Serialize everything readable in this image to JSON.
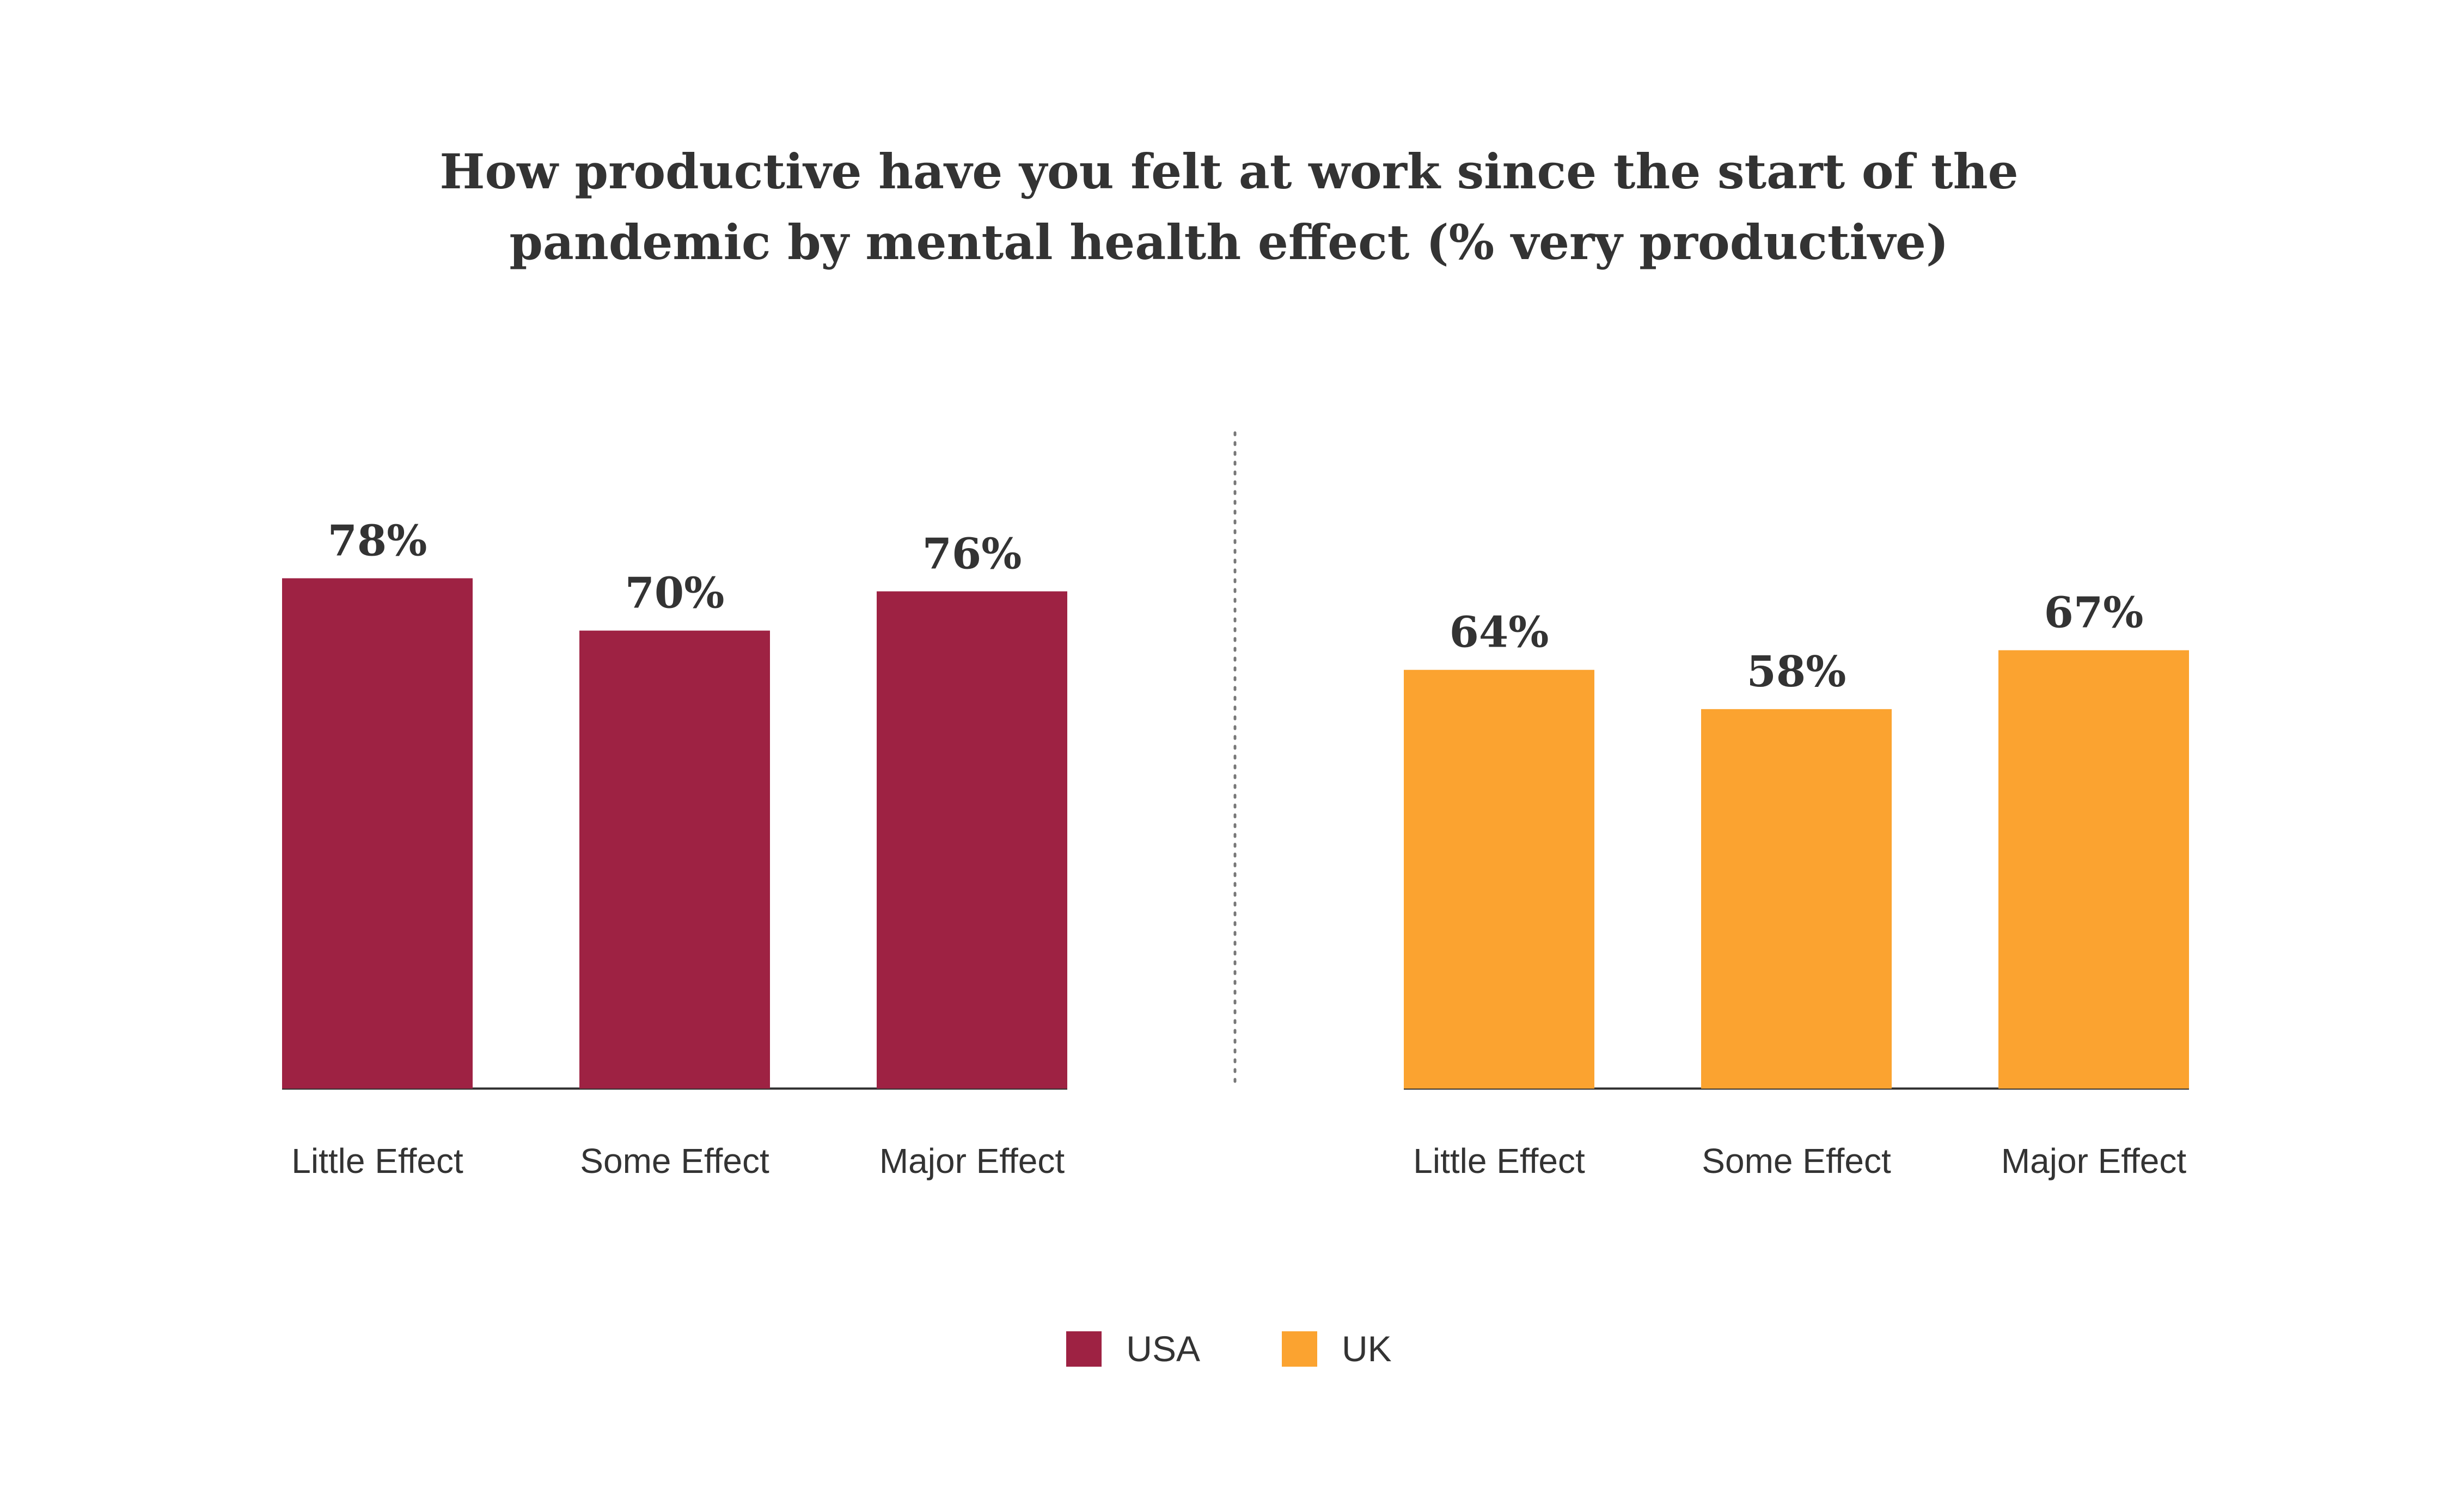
{
  "chart_data": {
    "type": "bar",
    "title_lines": [
      "How productive have you felt at work since the start of the",
      "pandemic by mental health effect (% very productive)"
    ],
    "categories": [
      "Little Effect",
      "Some Effect",
      "Major Effect"
    ],
    "series": [
      {
        "name": "USA",
        "color": "#9E2243",
        "values": [
          78,
          70,
          76
        ],
        "labels": [
          "78%",
          "70%",
          "76%"
        ]
      },
      {
        "name": "UK",
        "color": "#FBA330",
        "values": [
          64,
          58,
          67
        ],
        "labels": [
          "64%",
          "58%",
          "67%"
        ]
      }
    ],
    "ylim": [
      0,
      100
    ],
    "grid": false,
    "legend_position": "bottom-center",
    "layout": "panels-per-series"
  }
}
